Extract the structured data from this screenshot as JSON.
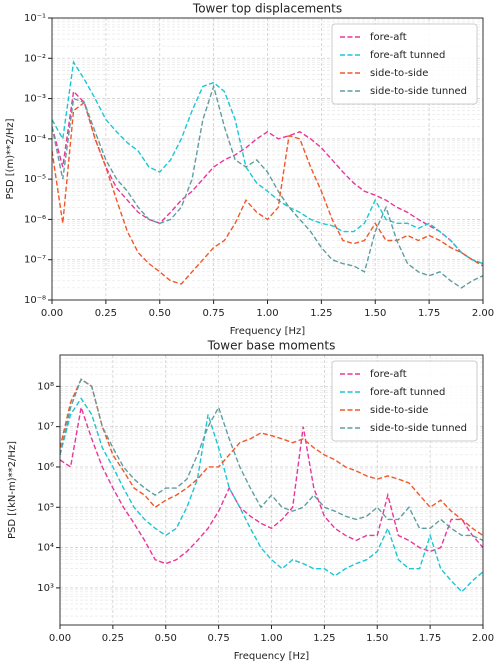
{
  "chart_data": [
    {
      "type": "line",
      "title": "Tower top displacements",
      "xlabel": "Frequency [Hz]",
      "ylabel": "PSD [(m)**2/Hz]",
      "yscale": "log",
      "grid": true,
      "minor_grid": true,
      "legend": "upper right",
      "xlim": [
        0,
        2
      ],
      "ylim": [
        1e-08,
        0.1
      ],
      "xticks": [
        {
          "value": 0,
          "label": "0.00"
        },
        {
          "value": 0.25,
          "label": "0.25"
        },
        {
          "value": 0.5,
          "label": "0.50"
        },
        {
          "value": 0.75,
          "label": "0.75"
        },
        {
          "value": 1,
          "label": "1.00"
        },
        {
          "value": 1.25,
          "label": "1.25"
        },
        {
          "value": 1.5,
          "label": "1.50"
        },
        {
          "value": 1.75,
          "label": "1.75"
        },
        {
          "value": 2,
          "label": "2.00"
        }
      ],
      "yticks": [
        {
          "value": 1e-08,
          "label": "10⁻⁸"
        },
        {
          "value": 1e-07,
          "label": "10⁻⁷"
        },
        {
          "value": 1e-06,
          "label": "10⁻⁶"
        },
        {
          "value": 1e-05,
          "label": "10⁻⁵"
        },
        {
          "value": 0.0001,
          "label": "10⁻⁴"
        },
        {
          "value": 0.001,
          "label": "10⁻³"
        },
        {
          "value": 0.01,
          "label": "10⁻²"
        },
        {
          "value": 0.1,
          "label": "10⁻¹"
        }
      ],
      "x": [
        0,
        0.05,
        0.1,
        0.15,
        0.2,
        0.25,
        0.3,
        0.35,
        0.4,
        0.45,
        0.5,
        0.55,
        0.6,
        0.65,
        0.7,
        0.75,
        0.8,
        0.85,
        0.9,
        0.95,
        1,
        1.05,
        1.1,
        1.15,
        1.2,
        1.25,
        1.3,
        1.35,
        1.4,
        1.45,
        1.5,
        1.55,
        1.6,
        1.65,
        1.7,
        1.75,
        1.8,
        1.85,
        1.9,
        1.95,
        2
      ],
      "series": [
        {
          "name": "fore-aft",
          "color": "#e8369a",
          "values": [
            0.0002,
            2e-05,
            0.0015,
            0.0008,
            0.0001,
            2e-05,
            6e-06,
            3e-06,
            1.5e-06,
            1e-06,
            8e-07,
            1.5e-06,
            3e-06,
            5e-06,
            1e-05,
            2e-05,
            3e-05,
            4e-05,
            6e-05,
            0.0001,
            0.00015,
            0.0001,
            0.00012,
            0.00015,
            0.0001,
            6e-05,
            3e-05,
            1.5e-05,
            8e-06,
            5e-06,
            4e-06,
            3e-06,
            2e-06,
            1.5e-06,
            1e-06,
            7e-07,
            5e-07,
            3e-07,
            1.5e-07,
            1e-07,
            8e-08
          ]
        },
        {
          "name": "fore-aft tunned",
          "color": "#1cc6d3",
          "values": [
            0.0003,
            0.0001,
            0.008,
            0.003,
            0.001,
            0.0003,
            0.00015,
            8e-05,
            5e-05,
            2e-05,
            1.5e-05,
            3e-05,
            0.0001,
            0.0005,
            0.002,
            0.0025,
            0.0015,
            0.0003,
            2e-05,
            8e-06,
            5e-06,
            3e-06,
            2e-06,
            1.5e-06,
            1e-06,
            8e-07,
            7e-07,
            5e-07,
            5e-07,
            8e-07,
            3e-06,
            1e-06,
            8e-07,
            8e-07,
            6e-07,
            8e-07,
            5e-07,
            3e-07,
            1.5e-07,
            1e-07,
            8e-08
          ]
        },
        {
          "name": "side-to-side",
          "color": "#f0582a",
          "values": [
            5e-05,
            8e-07,
            0.0005,
            0.0008,
            0.0001,
            2e-05,
            3e-06,
            5e-07,
            1.5e-07,
            8e-08,
            5e-08,
            3e-08,
            2.5e-08,
            5e-08,
            1e-07,
            2e-07,
            3e-07,
            8e-07,
            3e-06,
            1.5e-06,
            1e-06,
            2e-06,
            0.00012,
            0.0001,
            2e-05,
            5e-06,
            1e-06,
            3e-07,
            2.5e-07,
            3e-07,
            8e-07,
            3e-07,
            3e-07,
            4e-07,
            3e-07,
            4e-07,
            3e-07,
            2e-07,
            1.5e-07,
            1e-07,
            7e-08
          ]
        },
        {
          "name": "side-to-side tunned",
          "color": "#5f9ea0",
          "values": [
            0.0002,
            1e-05,
            0.001,
            0.0008,
            0.00015,
            3e-05,
            1e-05,
            5e-06,
            2e-06,
            1e-06,
            8e-07,
            1e-06,
            2e-06,
            1e-05,
            0.0003,
            0.002,
            0.0002,
            3e-05,
            2e-05,
            3e-05,
            1.5e-05,
            5e-06,
            2e-06,
            1e-06,
            5e-07,
            2e-07,
            1e-07,
            8e-08,
            7e-08,
            5e-08,
            5e-07,
            2e-06,
            3e-07,
            8e-08,
            5e-08,
            4e-08,
            5e-08,
            3e-08,
            2e-08,
            3e-08,
            4e-08
          ]
        }
      ]
    },
    {
      "type": "line",
      "title": "Tower base moments",
      "xlabel": "Frequency [Hz]",
      "ylabel": "PSD [(kN-m)**2/Hz]",
      "yscale": "log",
      "grid": true,
      "minor_grid": true,
      "legend": "upper right",
      "xlim": [
        0,
        2
      ],
      "ylim": [
        120,
        600000000.0
      ],
      "xticks": [
        {
          "value": 0,
          "label": "0.00"
        },
        {
          "value": 0.25,
          "label": "0.25"
        },
        {
          "value": 0.5,
          "label": "0.50"
        },
        {
          "value": 0.75,
          "label": "0.75"
        },
        {
          "value": 1,
          "label": "1.00"
        },
        {
          "value": 1.25,
          "label": "1.25"
        },
        {
          "value": 1.5,
          "label": "1.50"
        },
        {
          "value": 1.75,
          "label": "1.75"
        },
        {
          "value": 2,
          "label": "2.00"
        }
      ],
      "yticks": [
        {
          "value": 1000.0,
          "label": "10³"
        },
        {
          "value": 10000.0,
          "label": "10⁴"
        },
        {
          "value": 100000.0,
          "label": "10⁵"
        },
        {
          "value": 1000000.0,
          "label": "10⁶"
        },
        {
          "value": 10000000.0,
          "label": "10⁷"
        },
        {
          "value": 100000000.0,
          "label": "10⁸"
        }
      ],
      "x": [
        0,
        0.05,
        0.1,
        0.15,
        0.2,
        0.25,
        0.3,
        0.35,
        0.4,
        0.45,
        0.5,
        0.55,
        0.6,
        0.65,
        0.7,
        0.75,
        0.8,
        0.85,
        0.9,
        0.95,
        1,
        1.05,
        1.1,
        1.15,
        1.2,
        1.25,
        1.3,
        1.35,
        1.4,
        1.45,
        1.5,
        1.55,
        1.6,
        1.65,
        1.7,
        1.75,
        1.8,
        1.85,
        1.9,
        1.95,
        2
      ],
      "series": [
        {
          "name": "fore-aft",
          "color": "#e8369a",
          "values": [
            1500000.0,
            1000000.0,
            30000000.0,
            5000000.0,
            1000000.0,
            300000.0,
            100000.0,
            40000.0,
            15000.0,
            5000.0,
            4000.0,
            5000.0,
            8000.0,
            15000.0,
            30000.0,
            80000.0,
            300000.0,
            100000.0,
            60000.0,
            40000.0,
            30000.0,
            50000.0,
            100000.0,
            10000000.0,
            300000.0,
            60000.0,
            30000.0,
            20000.0,
            15000.0,
            20000.0,
            20000.0,
            200000.0,
            20000.0,
            15000.0,
            10000.0,
            8000.0,
            10000.0,
            50000.0,
            50000.0,
            20000.0,
            10000.0
          ]
        },
        {
          "name": "fore-aft tunned",
          "color": "#1cc6d3",
          "values": [
            2000000.0,
            20000000.0,
            50000000.0,
            20000000.0,
            3000000.0,
            1000000.0,
            300000.0,
            100000.0,
            50000.0,
            30000.0,
            20000.0,
            30000.0,
            100000.0,
            500000.0,
            20000000.0,
            3000000.0,
            300000.0,
            100000.0,
            30000.0,
            10000.0,
            5000.0,
            3000.0,
            5000.0,
            4000.0,
            3000.0,
            3000.0,
            2000.0,
            3000.0,
            4000.0,
            5000.0,
            8000.0,
            30000.0,
            5000.0,
            3000.0,
            3000.0,
            20000.0,
            3000.0,
            1500.0,
            800,
            1500,
            2500
          ]
        },
        {
          "name": "side-to-side",
          "color": "#f0582a",
          "values": [
            3000000.0,
            40000000.0,
            150000000.0,
            100000000.0,
            10000000.0,
            2000000.0,
            800000.0,
            300000.0,
            200000.0,
            100000.0,
            150000.0,
            200000.0,
            300000.0,
            500000.0,
            1000000.0,
            1000000.0,
            2000000.0,
            4000000.0,
            5000000.0,
            7000000.0,
            6000000.0,
            5000000.0,
            4000000.0,
            5000000.0,
            3000000.0,
            2000000.0,
            1500000.0,
            1000000.0,
            800000.0,
            600000.0,
            500000.0,
            600000.0,
            500000.0,
            400000.0,
            200000.0,
            100000.0,
            150000.0,
            80000.0,
            50000.0,
            30000.0,
            20000.0
          ]
        },
        {
          "name": "side-to-side tunned",
          "color": "#5f9ea0",
          "values": [
            2000000.0,
            30000000.0,
            150000000.0,
            100000000.0,
            10000000.0,
            3000000.0,
            1000000.0,
            500000.0,
            300000.0,
            200000.0,
            300000.0,
            300000.0,
            500000.0,
            2000000.0,
            10000000.0,
            30000000.0,
            5000000.0,
            1000000.0,
            300000.0,
            100000.0,
            200000.0,
            100000.0,
            80000.0,
            100000.0,
            200000.0,
            100000.0,
            80000.0,
            60000.0,
            50000.0,
            60000.0,
            100000.0,
            50000.0,
            50000.0,
            100000.0,
            30000.0,
            30000.0,
            50000.0,
            30000.0,
            20000.0,
            20000.0,
            15000.0
          ]
        }
      ]
    }
  ]
}
